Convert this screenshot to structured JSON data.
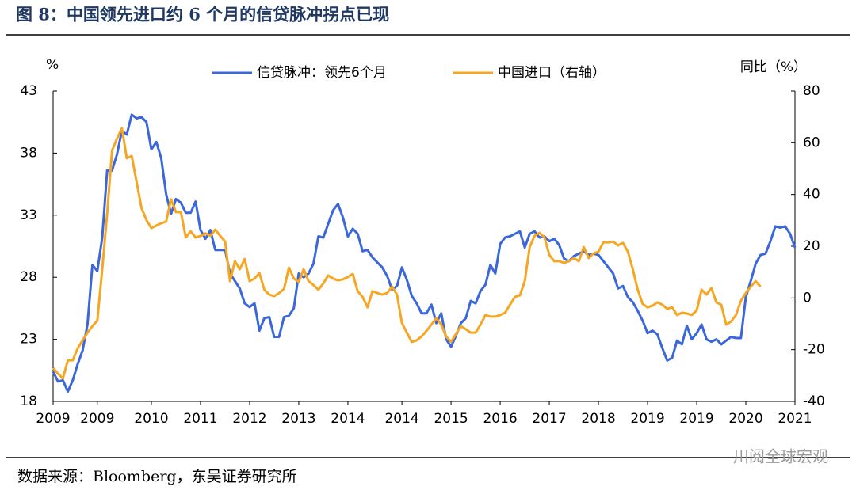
{
  "header": {
    "title": "图 8：中国领先进口约 6 个月的信贷脉冲拐点已现"
  },
  "chart_data": {
    "type": "line",
    "y_unit_label": "%",
    "y2_unit_label": "同比（%）",
    "categories": [
      "2009",
      null,
      null,
      null,
      null,
      null,
      null,
      null,
      null,
      "2009",
      null,
      null,
      null,
      null,
      null,
      null,
      null,
      null,
      null,
      null,
      "2010",
      null,
      null,
      null,
      null,
      null,
      null,
      null,
      null,
      null,
      "2011",
      null,
      null,
      null,
      null,
      null,
      null,
      null,
      null,
      null,
      "2012",
      null,
      null,
      null,
      null,
      null,
      null,
      null,
      null,
      null,
      "2013",
      null,
      null,
      null,
      null,
      null,
      null,
      null,
      null,
      null,
      "2014",
      null,
      null,
      null,
      null,
      null,
      null,
      null,
      null,
      null,
      null,
      "2014",
      null,
      null,
      null,
      null,
      null,
      null,
      null,
      null,
      null,
      "2015",
      null,
      null,
      null,
      null,
      null,
      null,
      null,
      null,
      null,
      "2016",
      null,
      null,
      null,
      null,
      null,
      null,
      null,
      null,
      null,
      "2017",
      null,
      null,
      null,
      null,
      null,
      null,
      null,
      null,
      null,
      "2018",
      null,
      null,
      null,
      null,
      null,
      null,
      null,
      null,
      null,
      "2019",
      null,
      null,
      null,
      null,
      null,
      null,
      null,
      null,
      null,
      "2019",
      null,
      null,
      null,
      null,
      null,
      null,
      null,
      null,
      null,
      "2020",
      null,
      null,
      null,
      null,
      null,
      null,
      null,
      null,
      null,
      "2021"
    ],
    "series": [
      {
        "name": "信贷脉冲：领先6个月",
        "color": "#3b67db",
        "values": [
          20.4,
          19.6,
          19.7,
          18.8,
          19.7,
          21,
          22.1,
          24.2,
          29,
          28.5,
          31.2,
          36.6,
          36.6,
          37.9,
          39.8,
          39.5,
          41.1,
          40.8,
          40.9,
          40.5,
          38.3,
          38.9,
          37.6,
          34.7,
          33.1,
          34.3,
          34,
          33.2,
          33.2,
          34.1,
          31.8,
          31.1,
          31.8,
          30.2,
          30.2,
          30.2,
          28.3,
          27.7,
          27.1,
          25.9,
          25.6,
          25.9,
          23.7,
          24.7,
          24.8,
          23.2,
          23.2,
          24.8,
          24.9,
          25.5,
          28.3,
          28,
          28.3,
          29.1,
          31.3,
          31.2,
          32.3,
          33.4,
          33.9,
          32.8,
          31.3,
          31.9,
          31.5,
          30.1,
          30.2,
          29.6,
          29.2,
          28.8,
          28.1,
          27,
          27.3,
          28.8,
          27.8,
          26.5,
          25.9,
          25.1,
          25.1,
          25.8,
          24.3,
          25.1,
          23,
          22.4,
          23.3,
          24.3,
          24.7,
          26.1,
          25.9,
          26.9,
          27.4,
          29,
          28.3,
          30.7,
          31.2,
          31.3,
          31.5,
          31.7,
          30.4,
          31.5,
          31.7,
          31.2,
          31.3,
          30.9,
          31.1,
          30.6,
          29.5,
          29.3,
          29.7,
          29.9,
          30.1,
          29.8,
          29.9,
          29.8,
          29.3,
          28.8,
          28.3,
          27.1,
          27.3,
          26.4,
          26,
          25.3,
          24.5,
          23.5,
          23.7,
          23.4,
          22.3,
          21.3,
          21.5,
          22.9,
          22.6,
          24.1,
          23,
          23.5,
          24.2,
          23,
          22.8,
          23,
          22.6,
          22.9,
          23.2,
          23.1,
          23.1,
          26.4,
          27.7,
          29.1,
          29.8,
          29.9,
          30.9,
          32.1,
          32,
          32.1,
          31.5,
          30.4
        ]
      },
      {
        "name": "中国进口（右轴）",
        "color": "#f5a623",
        "axis": "y2",
        "values": [
          -27.1,
          -29.3,
          -31.1,
          -24.1,
          -24.1,
          -19.5,
          -16.4,
          -13.4,
          -10.9,
          -8.8,
          11.1,
          32.6,
          57,
          61.6,
          65.6,
          54,
          54.9,
          44.8,
          34.7,
          30.1,
          27,
          28,
          28.9,
          29.5,
          38.1,
          33.2,
          33.2,
          23.4,
          25.8,
          23.4,
          24,
          25,
          24,
          26.4,
          24,
          21.8,
          6.5,
          14.2,
          11.1,
          15.1,
          6.5,
          7.5,
          9.6,
          3.2,
          1.3,
          0.7,
          1.9,
          3.5,
          11.7,
          7.5,
          6.2,
          11.1,
          6.5,
          5,
          3.2,
          5.6,
          8.7,
          7.5,
          6.8,
          7.2,
          8.1,
          9.3,
          2.6,
          0.4,
          -3.6,
          2.6,
          1.9,
          1.3,
          1.9,
          4.4,
          1.3,
          -9.7,
          -13.4,
          -17,
          -16.4,
          -14.9,
          -12.7,
          -10.3,
          -7.8,
          -10.3,
          -14.9,
          -17,
          -13.9,
          -10.9,
          -12.1,
          -13.4,
          -13.4,
          -10.3,
          -6.6,
          -7.2,
          -7.2,
          -6.6,
          -5.7,
          -2.6,
          0.4,
          1,
          6.5,
          19.7,
          24,
          25.2,
          23.4,
          16.6,
          14.2,
          14.2,
          13.6,
          14.2,
          15.4,
          14.2,
          19.7,
          15.4,
          17.2,
          17.9,
          21.5,
          21.5,
          21.8,
          20.3,
          21.3,
          17.9,
          11.1,
          3.2,
          -2.3,
          -3.6,
          -3,
          -1.7,
          -2.6,
          -4.2,
          -3.6,
          -6.6,
          -5.7,
          -6,
          -6.6,
          -4.8,
          3.2,
          1.3,
          3.8,
          -1.7,
          -2.6,
          -10.3,
          -9.1,
          -6.6,
          -1.1,
          1.9,
          4.4,
          6.5,
          4.4,
          null,
          null,
          null,
          null,
          null,
          null,
          null
        ]
      }
    ],
    "ylim": [
      18,
      43
    ],
    "yticks": [
      18,
      23,
      28,
      33,
      38,
      43
    ],
    "y2lim": [
      -40,
      80
    ],
    "y2ticks": [
      -40,
      -20,
      0,
      20,
      40,
      60,
      80
    ],
    "grid": false
  },
  "footer": {
    "source": "数据来源：Bloomberg，东吴证券研究所",
    "watermark": "川阅全球宏观"
  }
}
